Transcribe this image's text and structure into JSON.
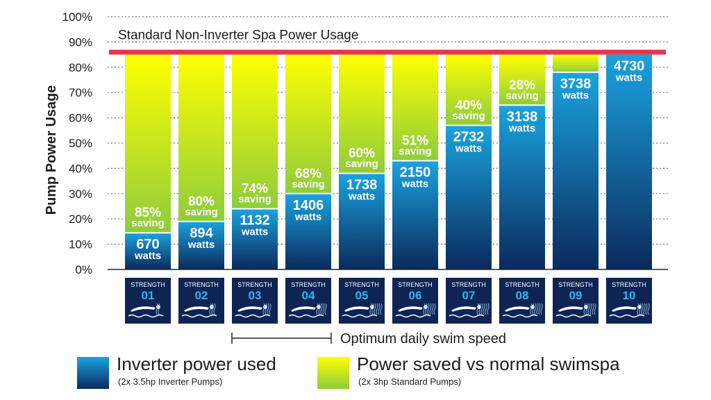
{
  "chart_data": {
    "type": "bar",
    "stacked": true,
    "ylabel": "Pump Power Usage",
    "yticks": [
      "0%",
      "10%",
      "20%",
      "30%",
      "40%",
      "50%",
      "60%",
      "70%",
      "80%",
      "90%",
      "100%"
    ],
    "ylim": [
      0,
      100
    ],
    "reference_line": {
      "label": "Standard Non-Inverter Spa Power Usage",
      "value": 85,
      "color": "#e8344e"
    },
    "bar_total": 85,
    "categories": [
      {
        "label": "STRENGTH",
        "number": "01"
      },
      {
        "label": "STRENGTH",
        "number": "02"
      },
      {
        "label": "STRENGTH",
        "number": "03"
      },
      {
        "label": "STRENGTH",
        "number": "04"
      },
      {
        "label": "STRENGTH",
        "number": "05"
      },
      {
        "label": "STRENGTH",
        "number": "06"
      },
      {
        "label": "STRENGTH",
        "number": "07"
      },
      {
        "label": "STRENGTH",
        "number": "08"
      },
      {
        "label": "STRENGTH",
        "number": "09"
      },
      {
        "label": "STRENGTH",
        "number": "10"
      }
    ],
    "inverter_values": [
      14.5,
      19,
      24,
      30,
      38,
      43,
      57,
      65,
      78,
      85
    ],
    "watts": [
      "670",
      "894",
      "1132",
      "1406",
      "1738",
      "2150",
      "2732",
      "3138",
      "3738",
      "4730"
    ],
    "watts_unit": "watts",
    "saving_pct": [
      "85%",
      "80%",
      "74%",
      "68%",
      "60%",
      "51%",
      "40%",
      "28%",
      "",
      ""
    ],
    "saving_word": "saving",
    "bracket": {
      "label": "Optimum daily swim speed",
      "from_index": 2,
      "to_index": 3
    },
    "colors": {
      "inverter_top": "#1aa3e0",
      "inverter_bottom": "#0b2a5c",
      "saved_top": "#ffff00",
      "saved_bottom": "#8fcc3c",
      "tile": "#0d2455",
      "tile_number": "#29b6f6",
      "grid": "#777777"
    }
  },
  "legend": {
    "inverter": {
      "title": "Inverter power used",
      "sub": "(2x 3.5hp Inverter Pumps)"
    },
    "saved": {
      "title": "Power saved vs normal swimspa",
      "sub": "(2x 3hp Standard Pumps)"
    }
  }
}
